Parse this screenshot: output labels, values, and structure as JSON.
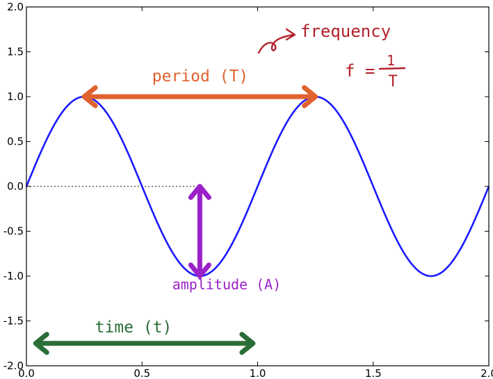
{
  "chart_data": {
    "type": "line",
    "title": "",
    "xlabel": "",
    "ylabel": "",
    "xlim": [
      0.0,
      2.0
    ],
    "ylim": [
      -2.0,
      2.0
    ],
    "grid": false,
    "xticks": [
      "0.0",
      "0.5",
      "1.0",
      "1.5",
      "2.0"
    ],
    "yticks": [
      "-2.0",
      "-1.5",
      "-1.0",
      "-0.5",
      "0.0",
      "0.5",
      "1.0",
      "1.5",
      "2.0"
    ],
    "series": [
      {
        "function": "sin(2*pi*x)",
        "x": [
          0.0,
          0.25,
          0.5,
          0.75,
          1.0,
          1.25,
          1.5,
          1.75,
          2.0
        ],
        "y": [
          0.0,
          1.0,
          0.0,
          -1.0,
          0.0,
          1.0,
          0.0,
          -1.0,
          0.0
        ],
        "color": "#1a1aff"
      }
    ],
    "reference_line": {
      "y": 0.0,
      "x_range": [
        0.0,
        0.75
      ],
      "style": "dotted",
      "color": "#888888"
    },
    "annotations": [
      {
        "label": "period (T)",
        "kind": "double-arrow",
        "from": [
          0.25,
          1.0
        ],
        "to": [
          1.25,
          1.0
        ],
        "color": "#e0622f"
      },
      {
        "label": "amplitude (A)",
        "kind": "double-arrow",
        "from": [
          0.75,
          0.0
        ],
        "to": [
          0.75,
          -1.0
        ],
        "color": "#9a22c8"
      },
      {
        "label": "time (t)",
        "kind": "double-arrow",
        "from": [
          0.04,
          -1.75
        ],
        "to": [
          0.98,
          -1.75
        ],
        "color": "#2b6e37"
      }
    ],
    "note": {
      "text": "frequency",
      "formula_lhs": "f =",
      "formula_num": "1",
      "formula_den": "T",
      "color": "#b3202a"
    }
  }
}
